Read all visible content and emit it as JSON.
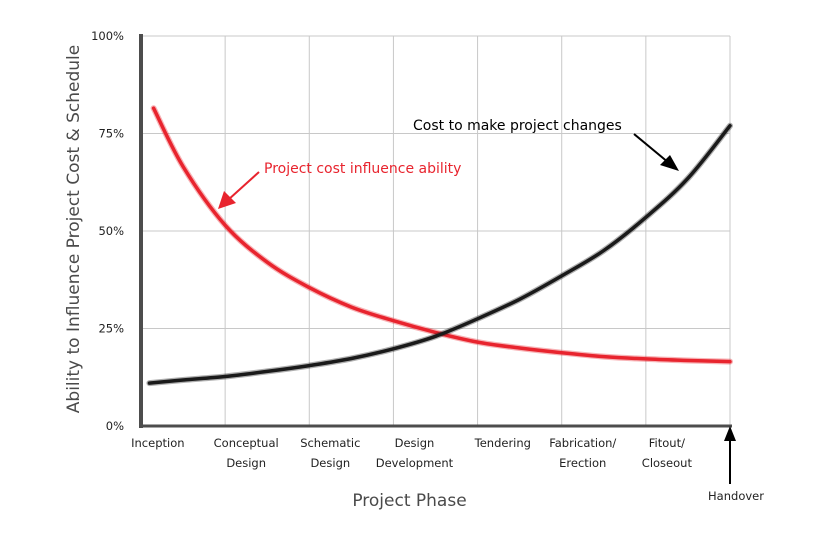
{
  "chart_data": {
    "type": "line",
    "xlabel": "Project Phase",
    "ylabel": "Ability to Influence Project Cost & Schedule",
    "ylim": [
      0,
      100
    ],
    "yticks": [
      0,
      25,
      50,
      75,
      100
    ],
    "ytick_labels": [
      "0%",
      "25%",
      "50%",
      "75%",
      "100%"
    ],
    "grid": true,
    "categories": [
      [
        "Inception"
      ],
      [
        "Conceptual",
        "Design"
      ],
      [
        "Schematic",
        "Design"
      ],
      [
        "Design",
        "Development"
      ],
      [
        "Tendering"
      ],
      [
        "Fabrication/",
        "Erection"
      ],
      [
        "Fitout/",
        "Closeout"
      ]
    ],
    "x_positions": [
      0.2,
      1.25,
      2.25,
      3.25,
      4.3,
      5.25,
      6.25
    ],
    "xlim": [
      0,
      7
    ],
    "series": [
      {
        "name": "Project cost influence ability",
        "color": "#e8242e",
        "x": [
          0.15,
          0.5,
          1.0,
          1.5,
          2.0,
          2.5,
          3.0,
          3.5,
          4.0,
          4.5,
          5.0,
          5.5,
          6.0,
          6.5,
          7.0
        ],
        "values": [
          81.5,
          66.5,
          51.5,
          42,
          35.5,
          30.5,
          27,
          24,
          21.5,
          20,
          18.8,
          17.8,
          17.2,
          16.8,
          16.5
        ]
      },
      {
        "name": "Cost to make project changes",
        "color": "#1a1a1a",
        "x": [
          0.1,
          0.5,
          1.0,
          1.5,
          2.0,
          2.5,
          3.0,
          3.5,
          4.0,
          4.5,
          5.0,
          5.5,
          6.0,
          6.5,
          7.0
        ],
        "values": [
          11,
          11.8,
          12.7,
          14,
          15.5,
          17.3,
          19.8,
          23,
          27.5,
          32.5,
          38.5,
          45,
          53.5,
          63.5,
          77
        ]
      }
    ],
    "annotations": [
      {
        "text": "Cost to make project changes",
        "color": "#000000"
      },
      {
        "text": "Project cost influence ability",
        "color": "#e8242e"
      },
      {
        "text": "Handover",
        "color": "#000000"
      }
    ]
  }
}
